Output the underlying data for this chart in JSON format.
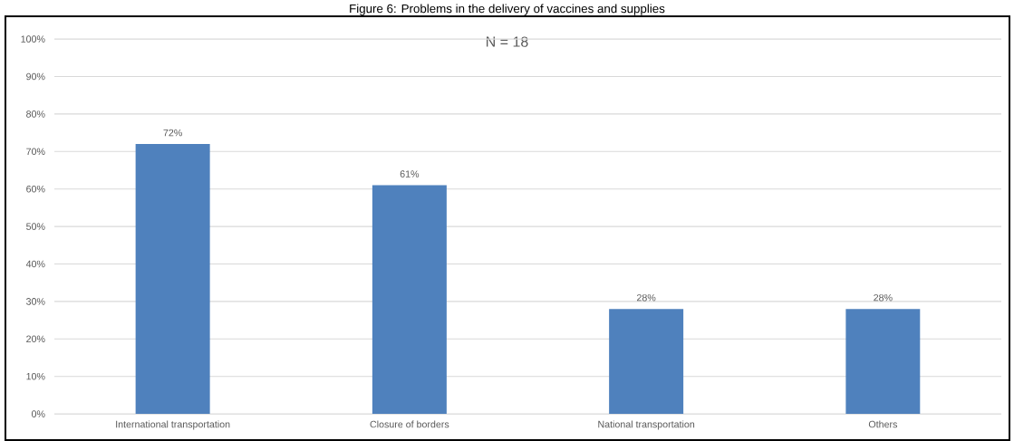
{
  "chart_data": {
    "type": "bar",
    "title": "Figure 6: Problems in the delivery of vaccines and supplies",
    "subtitle": "N = 18",
    "categories": [
      "International transportation",
      "Closure of borders",
      "National transportation",
      "Others"
    ],
    "values": [
      72,
      61,
      28,
      28
    ],
    "value_labels": [
      "72%",
      "61%",
      "28%",
      "28%"
    ],
    "color": "#4f81bd",
    "ylim": [
      0,
      100
    ],
    "yticks": [
      {
        "value": 0,
        "label": "0%"
      },
      {
        "value": 10,
        "label": "10%"
      },
      {
        "value": 20,
        "label": "20%"
      },
      {
        "value": 30,
        "label": "30%"
      },
      {
        "value": 40,
        "label": "40%"
      },
      {
        "value": 50,
        "label": "50%"
      },
      {
        "value": 60,
        "label": "60%"
      },
      {
        "value": 70,
        "label": "70%"
      },
      {
        "value": 80,
        "label": "80%"
      },
      {
        "value": 90,
        "label": "90%"
      },
      {
        "value": 100,
        "label": "100%"
      }
    ],
    "grid": "y"
  }
}
